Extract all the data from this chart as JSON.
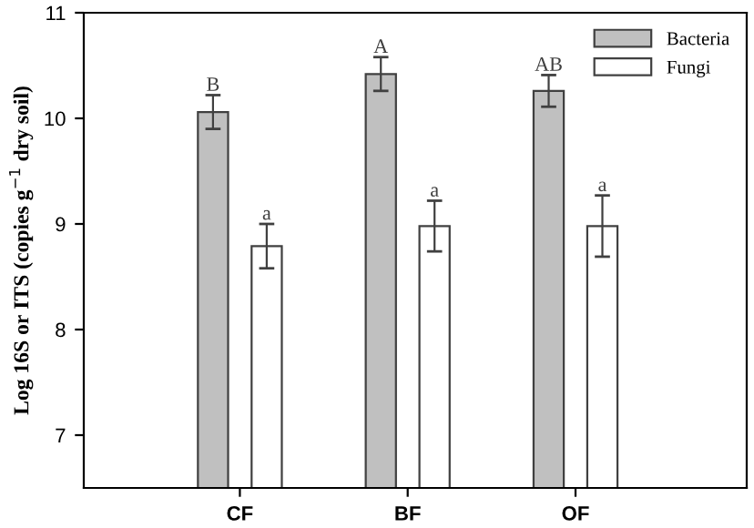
{
  "chart_data": {
    "type": "bar",
    "ylabel": "Log 16S or ITS (copies g$^{−1}$ dry soil)",
    "categories": [
      "CF",
      "BF",
      "OF"
    ],
    "series": [
      {
        "name": "Bacteria",
        "color": "#c0c0c0",
        "values": [
          10.06,
          10.42,
          10.26
        ],
        "errors": [
          0.16,
          0.16,
          0.15
        ]
      },
      {
        "name": "Fungi",
        "color": "#ffffff",
        "values": [
          8.79,
          8.98,
          8.98
        ],
        "errors": [
          0.21,
          0.24,
          0.29
        ]
      }
    ],
    "ylim": [
      6.5,
      11
    ],
    "yticks": [
      7,
      8,
      9,
      10,
      11
    ],
    "grid": false,
    "legend": "top right",
    "annotations": [
      "B",
      "A",
      "AB",
      "a",
      "a",
      "a"
    ]
  }
}
